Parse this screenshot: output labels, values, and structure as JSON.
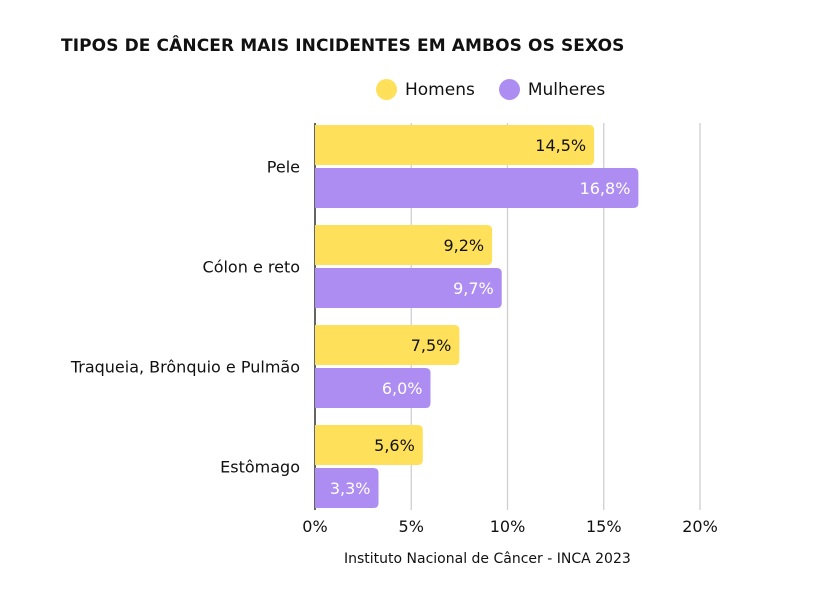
{
  "chart_data": {
    "type": "bar",
    "orientation": "horizontal",
    "title": "TIPOS DE CÂNCER MAIS INCIDENTES EM AMBOS OS SEXOS",
    "categories": [
      "Pele",
      "Cólon e reto",
      "Traqueia, Brônquio e Pulmão",
      "Estômago"
    ],
    "series": [
      {
        "name": "Homens",
        "color": "#FFE05A",
        "values": [
          14.5,
          9.2,
          7.5,
          5.6
        ],
        "labels": [
          "14,5%",
          "9,2%",
          "7,5%",
          "5,6%"
        ],
        "label_color": "#111111"
      },
      {
        "name": "Mulheres",
        "color": "#AE8DF3",
        "values": [
          16.8,
          9.7,
          6.0,
          3.3
        ],
        "labels": [
          "16,8%",
          "9,7%",
          "6,0%",
          "3,3%"
        ],
        "label_color": "#ffffff"
      }
    ],
    "xlim": [
      0,
      20
    ],
    "xticks": [
      0,
      5,
      10,
      15,
      20
    ],
    "xtick_labels": [
      "0%",
      "5%",
      "10%",
      "15%",
      "20%"
    ],
    "grid": "vertical",
    "legend_position": "top"
  },
  "source": "Instituto Nacional de Câncer - INCA 2023"
}
